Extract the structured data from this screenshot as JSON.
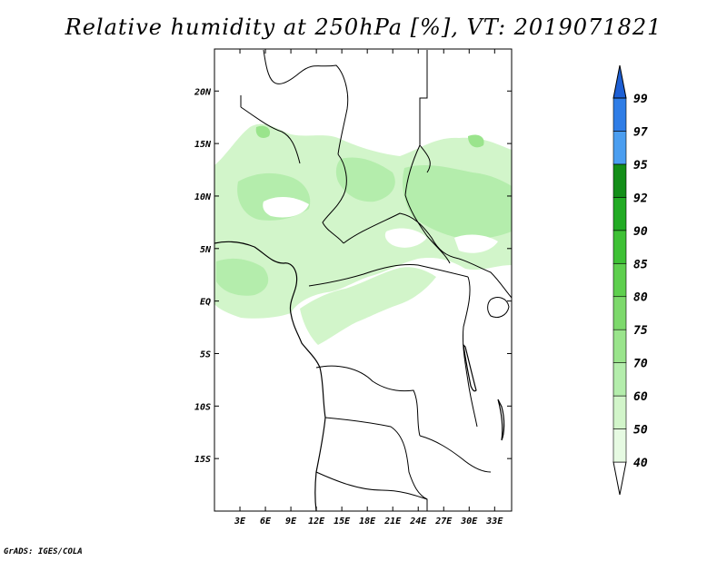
{
  "title": "Relative humidity at 250hPa [%], VT: 2019071821",
  "credit": "GrADS: IGES/COLA",
  "map": {
    "lon_range": [
      0,
      35
    ],
    "lat_range": [
      -20,
      24
    ],
    "lon_ticks": [
      {
        "value": 3,
        "label": "3E"
      },
      {
        "value": 6,
        "label": "6E"
      },
      {
        "value": 9,
        "label": "9E"
      },
      {
        "value": 12,
        "label": "12E"
      },
      {
        "value": 15,
        "label": "15E"
      },
      {
        "value": 18,
        "label": "18E"
      },
      {
        "value": 21,
        "label": "21E"
      },
      {
        "value": 24,
        "label": "24E"
      },
      {
        "value": 27,
        "label": "27E"
      },
      {
        "value": 30,
        "label": "30E"
      },
      {
        "value": 33,
        "label": "33E"
      }
    ],
    "lat_ticks": [
      {
        "value": 20,
        "label": "20N"
      },
      {
        "value": 15,
        "label": "15N"
      },
      {
        "value": 10,
        "label": "10N"
      },
      {
        "value": 5,
        "label": "5N"
      },
      {
        "value": 0,
        "label": "EQ"
      },
      {
        "value": -5,
        "label": "5S"
      },
      {
        "value": -10,
        "label": "10S"
      },
      {
        "value": -15,
        "label": "15S"
      }
    ]
  },
  "colorbar": {
    "levels": [
      "40",
      "50",
      "60",
      "70",
      "75",
      "80",
      "85",
      "90",
      "92",
      "95",
      "97",
      "99"
    ],
    "colors": [
      "#e6fae2",
      "#d2f5ca",
      "#b4edac",
      "#9ae48c",
      "#7dd96c",
      "#5ecf4e",
      "#3ec135",
      "#22ab24",
      "#138e18",
      "#4b9ef0",
      "#2f7de6",
      "#1d5fd4"
    ]
  },
  "humidity_colors": {
    "light": "#d2f5ca",
    "medium": "#b4edac",
    "dark": "#9ae48c"
  }
}
